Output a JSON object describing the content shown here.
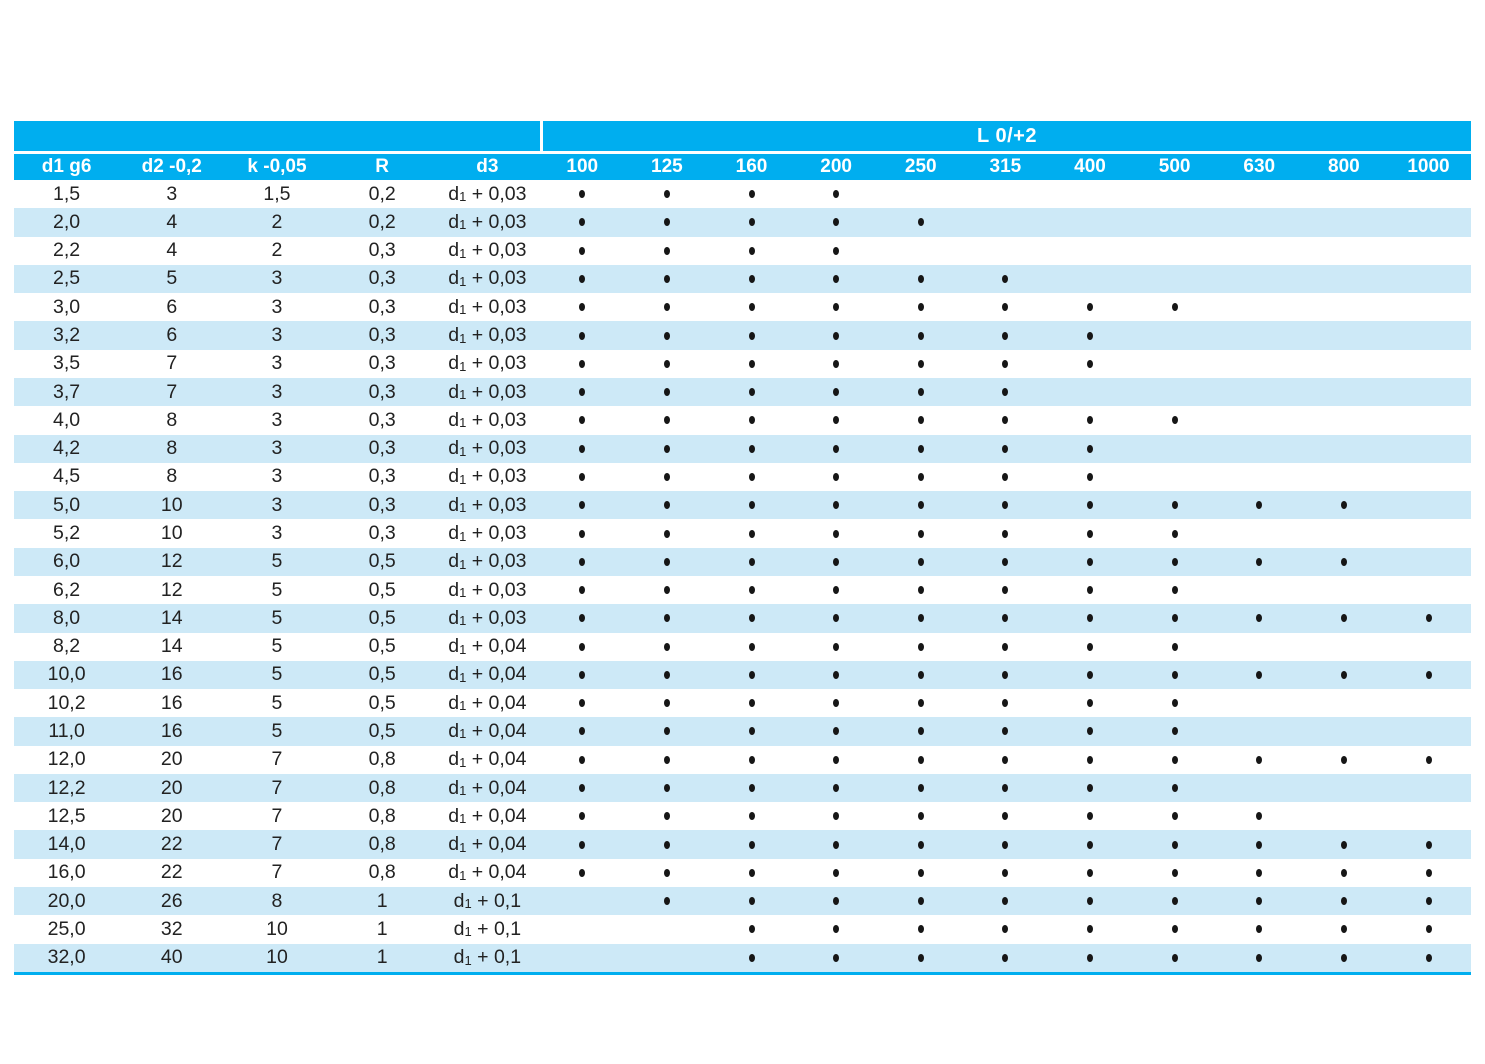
{
  "table": {
    "span_header": "L 0/+2",
    "columns": [
      "d1 g6",
      "d2 -0,2",
      "k -0,05",
      "R",
      "d3"
    ],
    "length_columns": [
      "100",
      "125",
      "160",
      "200",
      "250",
      "315",
      "400",
      "500",
      "630",
      "800",
      "1000"
    ],
    "d3_base": "d",
    "d3_sub": "1",
    "dot_symbol": "•",
    "colors": {
      "cyan": "#00AEEF",
      "stripe": "#CDE9F7",
      "header_text": "#FFFFFF",
      "body_text": "#222222"
    },
    "rows": [
      {
        "d1": "1,5",
        "d2": "3",
        "k": "1,5",
        "r": "0,2",
        "d3": "+ 0,03",
        "dots": [
          1,
          1,
          1,
          1,
          0,
          0,
          0,
          0,
          0,
          0,
          0
        ]
      },
      {
        "d1": "2,0",
        "d2": "4",
        "k": "2",
        "r": "0,2",
        "d3": "+ 0,03",
        "dots": [
          1,
          1,
          1,
          1,
          1,
          0,
          0,
          0,
          0,
          0,
          0
        ]
      },
      {
        "d1": "2,2",
        "d2": "4",
        "k": "2",
        "r": "0,3",
        "d3": "+ 0,03",
        "dots": [
          1,
          1,
          1,
          1,
          0,
          0,
          0,
          0,
          0,
          0,
          0
        ]
      },
      {
        "d1": "2,5",
        "d2": "5",
        "k": "3",
        "r": "0,3",
        "d3": "+ 0,03",
        "dots": [
          1,
          1,
          1,
          1,
          1,
          1,
          0,
          0,
          0,
          0,
          0
        ]
      },
      {
        "d1": "3,0",
        "d2": "6",
        "k": "3",
        "r": "0,3",
        "d3": "+ 0,03",
        "dots": [
          1,
          1,
          1,
          1,
          1,
          1,
          1,
          1,
          0,
          0,
          0
        ]
      },
      {
        "d1": "3,2",
        "d2": "6",
        "k": "3",
        "r": "0,3",
        "d3": "+ 0,03",
        "dots": [
          1,
          1,
          1,
          1,
          1,
          1,
          1,
          0,
          0,
          0,
          0
        ]
      },
      {
        "d1": "3,5",
        "d2": "7",
        "k": "3",
        "r": "0,3",
        "d3": "+ 0,03",
        "dots": [
          1,
          1,
          1,
          1,
          1,
          1,
          1,
          0,
          0,
          0,
          0
        ]
      },
      {
        "d1": "3,7",
        "d2": "7",
        "k": "3",
        "r": "0,3",
        "d3": "+ 0,03",
        "dots": [
          1,
          1,
          1,
          1,
          1,
          1,
          0,
          0,
          0,
          0,
          0
        ]
      },
      {
        "d1": "4,0",
        "d2": "8",
        "k": "3",
        "r": "0,3",
        "d3": "+ 0,03",
        "dots": [
          1,
          1,
          1,
          1,
          1,
          1,
          1,
          1,
          0,
          0,
          0
        ]
      },
      {
        "d1": "4,2",
        "d2": "8",
        "k": "3",
        "r": "0,3",
        "d3": "+ 0,03",
        "dots": [
          1,
          1,
          1,
          1,
          1,
          1,
          1,
          0,
          0,
          0,
          0
        ]
      },
      {
        "d1": "4,5",
        "d2": "8",
        "k": "3",
        "r": "0,3",
        "d3": "+ 0,03",
        "dots": [
          1,
          1,
          1,
          1,
          1,
          1,
          1,
          0,
          0,
          0,
          0
        ]
      },
      {
        "d1": "5,0",
        "d2": "10",
        "k": "3",
        "r": "0,3",
        "d3": "+ 0,03",
        "dots": [
          1,
          1,
          1,
          1,
          1,
          1,
          1,
          1,
          1,
          1,
          0
        ]
      },
      {
        "d1": "5,2",
        "d2": "10",
        "k": "3",
        "r": "0,3",
        "d3": "+ 0,03",
        "dots": [
          1,
          1,
          1,
          1,
          1,
          1,
          1,
          1,
          0,
          0,
          0
        ]
      },
      {
        "d1": "6,0",
        "d2": "12",
        "k": "5",
        "r": "0,5",
        "d3": "+ 0,03",
        "dots": [
          1,
          1,
          1,
          1,
          1,
          1,
          1,
          1,
          1,
          1,
          0
        ]
      },
      {
        "d1": "6,2",
        "d2": "12",
        "k": "5",
        "r": "0,5",
        "d3": "+ 0,03",
        "dots": [
          1,
          1,
          1,
          1,
          1,
          1,
          1,
          1,
          0,
          0,
          0
        ]
      },
      {
        "d1": "8,0",
        "d2": "14",
        "k": "5",
        "r": "0,5",
        "d3": "+ 0,03",
        "dots": [
          1,
          1,
          1,
          1,
          1,
          1,
          1,
          1,
          1,
          1,
          1
        ]
      },
      {
        "d1": "8,2",
        "d2": "14",
        "k": "5",
        "r": "0,5",
        "d3": "+ 0,04",
        "dots": [
          1,
          1,
          1,
          1,
          1,
          1,
          1,
          1,
          0,
          0,
          0
        ]
      },
      {
        "d1": "10,0",
        "d2": "16",
        "k": "5",
        "r": "0,5",
        "d3": "+ 0,04",
        "dots": [
          1,
          1,
          1,
          1,
          1,
          1,
          1,
          1,
          1,
          1,
          1
        ]
      },
      {
        "d1": "10,2",
        "d2": "16",
        "k": "5",
        "r": "0,5",
        "d3": "+ 0,04",
        "dots": [
          1,
          1,
          1,
          1,
          1,
          1,
          1,
          1,
          0,
          0,
          0
        ]
      },
      {
        "d1": "11,0",
        "d2": "16",
        "k": "5",
        "r": "0,5",
        "d3": "+ 0,04",
        "dots": [
          1,
          1,
          1,
          1,
          1,
          1,
          1,
          1,
          0,
          0,
          0
        ]
      },
      {
        "d1": "12,0",
        "d2": "20",
        "k": "7",
        "r": "0,8",
        "d3": "+ 0,04",
        "dots": [
          1,
          1,
          1,
          1,
          1,
          1,
          1,
          1,
          1,
          1,
          1
        ]
      },
      {
        "d1": "12,2",
        "d2": "20",
        "k": "7",
        "r": "0,8",
        "d3": "+ 0,04",
        "dots": [
          1,
          1,
          1,
          1,
          1,
          1,
          1,
          1,
          0,
          0,
          0
        ]
      },
      {
        "d1": "12,5",
        "d2": "20",
        "k": "7",
        "r": "0,8",
        "d3": "+ 0,04",
        "dots": [
          1,
          1,
          1,
          1,
          1,
          1,
          1,
          1,
          1,
          0,
          0
        ]
      },
      {
        "d1": "14,0",
        "d2": "22",
        "k": "7",
        "r": "0,8",
        "d3": "+ 0,04",
        "dots": [
          1,
          1,
          1,
          1,
          1,
          1,
          1,
          1,
          1,
          1,
          1
        ]
      },
      {
        "d1": "16,0",
        "d2": "22",
        "k": "7",
        "r": "0,8",
        "d3": "+ 0,04",
        "dots": [
          1,
          1,
          1,
          1,
          1,
          1,
          1,
          1,
          1,
          1,
          1
        ]
      },
      {
        "d1": "20,0",
        "d2": "26",
        "k": "8",
        "r": "1",
        "d3": "+ 0,1",
        "dots": [
          0,
          1,
          1,
          1,
          1,
          1,
          1,
          1,
          1,
          1,
          1
        ]
      },
      {
        "d1": "25,0",
        "d2": "32",
        "k": "10",
        "r": "1",
        "d3": "+ 0,1",
        "dots": [
          0,
          0,
          1,
          1,
          1,
          1,
          1,
          1,
          1,
          1,
          1
        ]
      },
      {
        "d1": "32,0",
        "d2": "40",
        "k": "10",
        "r": "1",
        "d3": "+ 0,1",
        "dots": [
          0,
          0,
          1,
          1,
          1,
          1,
          1,
          1,
          1,
          1,
          1
        ]
      }
    ]
  }
}
